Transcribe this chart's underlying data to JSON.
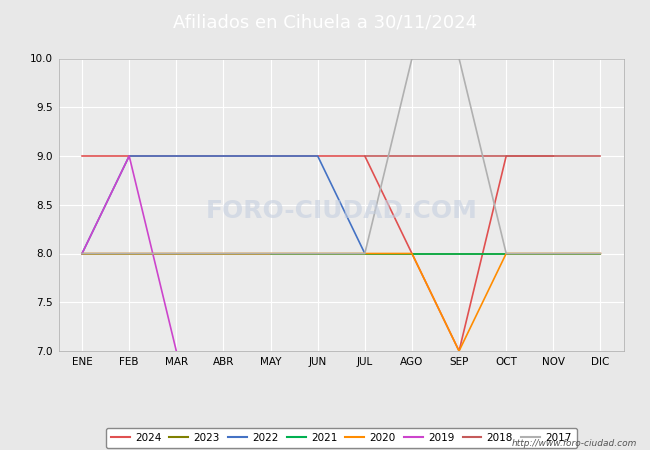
{
  "title": "Afiliados en Cihuela a 30/11/2024",
  "ylim": [
    7.0,
    10.0
  ],
  "yticks": [
    7.0,
    7.5,
    8.0,
    8.5,
    9.0,
    9.5,
    10.0
  ],
  "months": [
    "ENE",
    "FEB",
    "MAR",
    "ABR",
    "MAY",
    "JUN",
    "JUL",
    "AGO",
    "SEP",
    "OCT",
    "NOV",
    "DIC"
  ],
  "series": {
    "2024": {
      "color": "#e05050",
      "data": [
        [
          1,
          9
        ],
        [
          2,
          9
        ],
        [
          3,
          9
        ],
        [
          4,
          9
        ],
        [
          5,
          9
        ],
        [
          6,
          9
        ],
        [
          7,
          9
        ],
        [
          8,
          8
        ],
        [
          9,
          7
        ],
        [
          10,
          9
        ],
        [
          11,
          9
        ]
      ]
    },
    "2023": {
      "color": "#808000",
      "data": [
        [
          1,
          8
        ],
        [
          2,
          8
        ],
        [
          3,
          8
        ],
        [
          4,
          8
        ],
        [
          5,
          8
        ],
        [
          6,
          8
        ],
        [
          7,
          8
        ],
        [
          8,
          8
        ],
        [
          9,
          8
        ],
        [
          10,
          8
        ],
        [
          11,
          8
        ],
        [
          12,
          8
        ]
      ]
    },
    "2022": {
      "color": "#4472c4",
      "data": [
        [
          1,
          8
        ],
        [
          2,
          9
        ],
        [
          3,
          9
        ],
        [
          4,
          9
        ],
        [
          5,
          9
        ],
        [
          6,
          9
        ],
        [
          7,
          8
        ]
      ]
    },
    "2021": {
      "color": "#00b050",
      "data": [
        [
          5,
          8
        ],
        [
          6,
          8
        ],
        [
          7,
          8
        ],
        [
          8,
          8
        ],
        [
          9,
          8
        ],
        [
          10,
          8
        ],
        [
          11,
          8
        ],
        [
          12,
          8
        ]
      ]
    },
    "2020": {
      "color": "#ff8c00",
      "data": [
        [
          1,
          8
        ],
        [
          2,
          8
        ],
        [
          3,
          8
        ],
        [
          4,
          8
        ],
        [
          5,
          8
        ],
        [
          6,
          8
        ],
        [
          7,
          8
        ],
        [
          8,
          8
        ],
        [
          9,
          7
        ],
        [
          10,
          8
        ],
        [
          11,
          8
        ],
        [
          12,
          8
        ]
      ]
    },
    "2019": {
      "color": "#cc44cc",
      "data": [
        [
          1,
          8
        ],
        [
          2,
          9
        ],
        [
          3,
          7
        ]
      ]
    },
    "2018": {
      "color": "#c55a5a",
      "data": [
        [
          7,
          9
        ],
        [
          8,
          9
        ],
        [
          9,
          9
        ],
        [
          10,
          9
        ],
        [
          11,
          9
        ],
        [
          12,
          9
        ]
      ]
    },
    "2017": {
      "color": "#b0b0b0",
      "data": [
        [
          1,
          8
        ],
        [
          4,
          8
        ],
        [
          7,
          8
        ],
        [
          8,
          10
        ],
        [
          9,
          10
        ],
        [
          10,
          8
        ],
        [
          11,
          8
        ],
        [
          12,
          8
        ]
      ]
    }
  },
  "url": "http://www.foro-ciudad.com",
  "header_bg": "#5b9bd5",
  "plot_bg": "#ebebeb",
  "grid_color": "#ffffff",
  "fig_bg": "#e8e8e8"
}
